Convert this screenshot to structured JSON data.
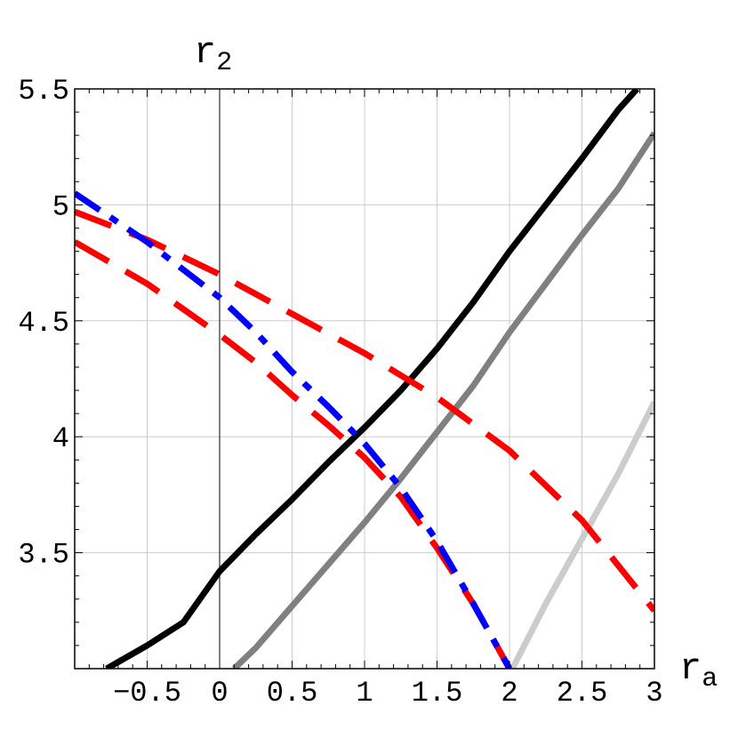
{
  "chart_data": {
    "type": "line",
    "title": "",
    "xlabel": {
      "main": "r",
      "sub": "a"
    },
    "ylabel": {
      "main": "r",
      "sub": "2"
    },
    "xlim": [
      -1,
      3
    ],
    "ylim": [
      3,
      5.5
    ],
    "x_ticks": [
      -0.5,
      0,
      0.5,
      1,
      1.5,
      2,
      2.5,
      3
    ],
    "x_tick_labels": [
      "-0.5",
      "0",
      "0.5",
      "1",
      "1.5",
      "2",
      "2.5",
      "3"
    ],
    "y_ticks": [
      3.5,
      4,
      4.5,
      5,
      5.5
    ],
    "y_tick_labels": [
      "3.5",
      "4",
      "4.5",
      "5",
      "5.5"
    ],
    "grid": true,
    "legend": "none",
    "series": [
      {
        "color": "#000000",
        "style": "solid",
        "x": [
          -0.78,
          -0.5,
          -0.25,
          0,
          0.25,
          0.5,
          0.75,
          1,
          1.25,
          1.5,
          1.75,
          2,
          2.25,
          2.5,
          2.75,
          2.88
        ],
        "y": [
          3,
          3.1,
          3.2,
          3.42,
          3.58,
          3.73,
          3.89,
          4.04,
          4.2,
          4.38,
          4.58,
          4.8,
          5.0,
          5.2,
          5.41,
          5.5
        ]
      },
      {
        "color": "#808080",
        "style": "solid",
        "x": [
          0.1,
          0.25,
          0.5,
          0.75,
          1,
          1.25,
          1.5,
          1.75,
          2,
          2.25,
          2.5,
          2.75,
          3
        ],
        "y": [
          3,
          3.09,
          3.27,
          3.45,
          3.63,
          3.82,
          4.02,
          4.22,
          4.45,
          4.66,
          4.87,
          5.07,
          5.31
        ]
      },
      {
        "color": "#cccccc",
        "style": "solid",
        "x": [
          2.02,
          2.25,
          2.5,
          2.75,
          3
        ],
        "y": [
          3,
          3.28,
          3.56,
          3.84,
          4.15
        ]
      },
      {
        "color": "#ff0000",
        "style": "dashed",
        "x": [
          -1,
          -0.5,
          0,
          0.5,
          1,
          1.5,
          2,
          2.5,
          3
        ],
        "y": [
          4.97,
          4.85,
          4.7,
          4.53,
          4.36,
          4.17,
          3.94,
          3.64,
          3.25
        ]
      },
      {
        "color": "#ff0000",
        "style": "dashed",
        "x": [
          -1,
          -0.5,
          0,
          0.25,
          0.5,
          0.75,
          1,
          1.25,
          1.5,
          1.75,
          2
        ],
        "y": [
          4.84,
          4.66,
          4.44,
          4.32,
          4.18,
          4.05,
          3.91,
          3.74,
          3.52,
          3.28,
          3.0
        ]
      },
      {
        "color": "#0000ff",
        "style": "dash-dot",
        "x": [
          -1,
          -0.5,
          0,
          0.25,
          0.5,
          0.75,
          1,
          1.25,
          1.5,
          1.75,
          2
        ],
        "y": [
          5.05,
          4.84,
          4.6,
          4.45,
          4.28,
          4.13,
          3.97,
          3.78,
          3.55,
          3.28,
          3.0
        ]
      }
    ]
  }
}
